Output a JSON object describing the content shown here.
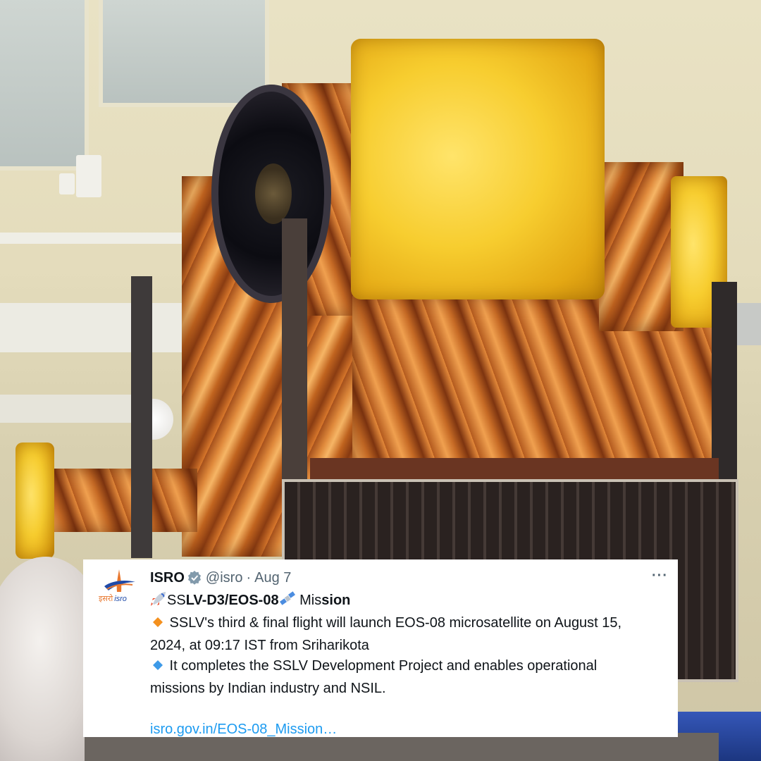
{
  "tweet": {
    "author_name": "ISRO",
    "handle": "@isro",
    "separator": "·",
    "date": "Aug 7",
    "more_label": "···",
    "avatar_text_left": "इसरो",
    "avatar_text_right": "isro",
    "title": {
      "prefix": "SS",
      "bold_part": "LV-D3/EOS-08",
      "suffix_plain": " Mis",
      "suffix_bold": "sion"
    },
    "bullet1_line1": " SSLV's third & final flight will launch EOS-08 microsatellite on August 15,",
    "bullet1_line2": "2024, at 09:17 IST from Sriharikota",
    "bullet2_line1": " It completes the SSLV Development Project and enables operational",
    "bullet2_line2": "missions by Indian industry and NSIL.",
    "link": "isro.gov.in/EOS-08_Mission…"
  },
  "icons": {
    "rocket": "rocket-icon",
    "satellite": "satellite-icon",
    "bullet1": "orange-diamond-icon",
    "bullet2": "blue-diamond-icon",
    "verified": "verified-badge-icon"
  },
  "colors": {
    "link": "#1d9bf0",
    "verified_badge": "#829aab",
    "isro_orange": "#e8772e",
    "isro_blue": "#1f4aa8"
  }
}
